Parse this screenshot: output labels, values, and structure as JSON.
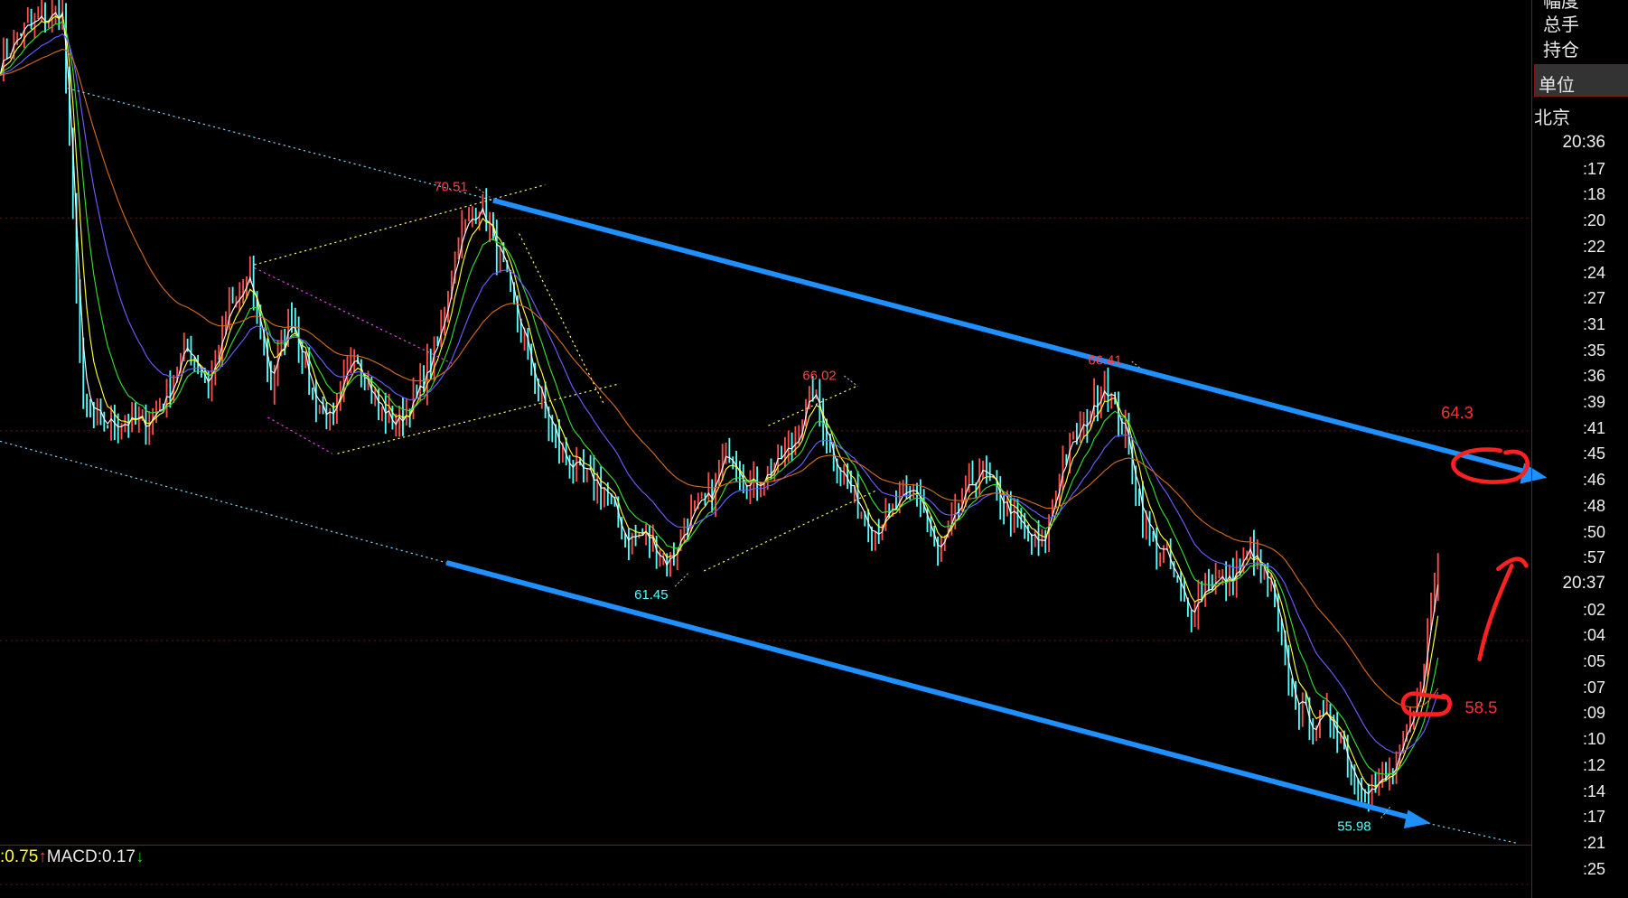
{
  "sidebar": {
    "labels": [
      "幅度",
      "总手",
      "持仓"
    ],
    "unit_label": "单位",
    "region": "北京",
    "times": [
      "20:36",
      ":17",
      ":18",
      ":20",
      ":22",
      ":24",
      ":27",
      ":31",
      ":35",
      ":36",
      ":39",
      ":41",
      ":45",
      ":46",
      ":48",
      ":50",
      ":57",
      "20:37",
      ":02",
      ":04",
      ":05",
      ":07",
      ":09",
      ":10",
      ":12",
      ":14",
      ":17",
      ":21",
      ":25"
    ]
  },
  "indicator": {
    "prev_value": ":0.75",
    "prev_arrow": "↑",
    "macd_label": "MACD:0.17",
    "macd_arrow": "↓"
  },
  "annotations": {
    "high_1": "70.51",
    "high_2": "66.02",
    "high_3": "66.41",
    "low_1": "61.45",
    "low_2": "55.98",
    "target_upper": "64.3",
    "target_lower": "58.5"
  },
  "colors": {
    "background": "#000000",
    "channel": "#1e90ff",
    "up_candle": "#ff4d4d",
    "down_candle": "#54ffff",
    "high_label": "#ff4040",
    "low_label": "#54ffff",
    "handwriting": "#ff2020",
    "ma_colors": [
      "#ffffff",
      "#ffff33",
      "#33dd33",
      "#6a5cff",
      "#d2691e"
    ]
  },
  "chart_data": {
    "type": "candlestick-line",
    "title": "",
    "series": [
      {
        "values": [
          73.35,
          74.07,
          74.3,
          74.5,
          65.3,
          65.1,
          65.2,
          65.1,
          65.78,
          66.97,
          66.0,
          67.67,
          68.4,
          66.0,
          67.67,
          65.78,
          65.08,
          66.97,
          65.55,
          65.08,
          65.78,
          66.97,
          69.34,
          70.16,
          68.86,
          67.2,
          65.55,
          64.36,
          63.9,
          63.66,
          62.48,
          62.6,
          61.89,
          62.94,
          63.4,
          64.6,
          63.66,
          64.13,
          64.6,
          65.9,
          64.36,
          63.4,
          62.7,
          63.2,
          63.66,
          62.0,
          63.2,
          64.13,
          63.4,
          62.7,
          62.24,
          64.36,
          65.08,
          66.15,
          64.83,
          62.7,
          62.0,
          60.8,
          61.54,
          61.54,
          62.24,
          61.3,
          58.93,
          58.22,
          58.45,
          57.03,
          56.8,
          57.3,
          58.7,
          62.0
        ]
      }
    ],
    "labeled_extremes": [
      70.51,
      66.02,
      66.41,
      61.45,
      55.98
    ],
    "channel": "descending",
    "grid": true
  }
}
